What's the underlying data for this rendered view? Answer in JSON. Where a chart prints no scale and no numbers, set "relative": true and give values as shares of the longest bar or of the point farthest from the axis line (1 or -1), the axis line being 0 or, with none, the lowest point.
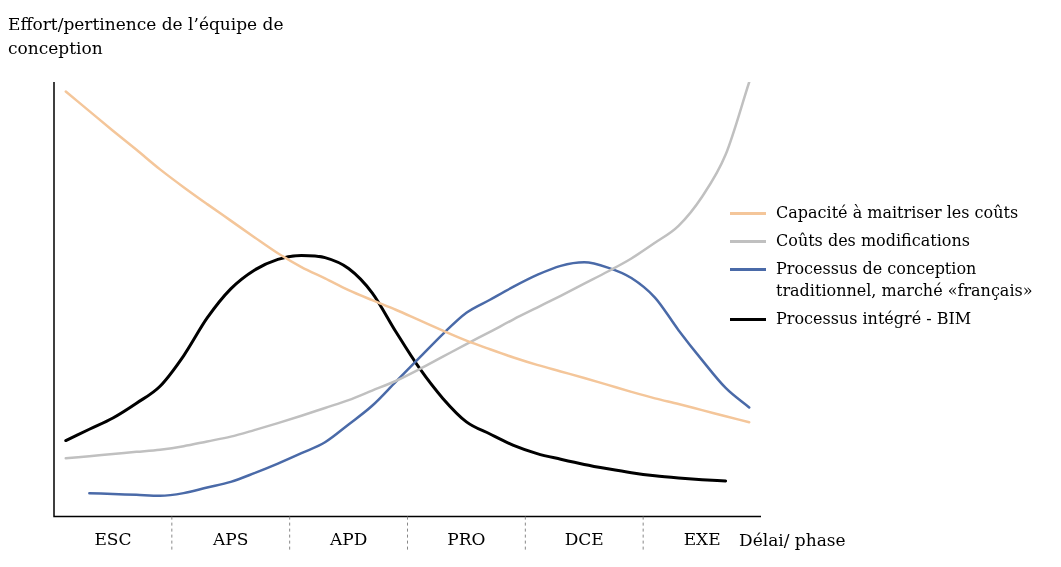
{
  "chart_data": {
    "type": "line",
    "ylabel": "Effort/pertinence de l’équipe de conception",
    "xlabel": "Délai/ phase",
    "relative": true,
    "categories": [
      null,
      null,
      "ESC",
      null,
      null,
      null,
      null,
      "APS",
      null,
      null,
      null,
      null,
      "APD",
      null,
      null,
      null,
      null,
      "PRO",
      null,
      null,
      null,
      null,
      "DCE",
      null,
      null,
      null,
      null,
      "EXE",
      null,
      null
    ],
    "grid": false,
    "legend": "right",
    "marker": "none",
    "line_style": "solid",
    "series": [
      {
        "name": "Capacité à maitriser les coûts",
        "color": "#f4c69a",
        "values": [
          0.978,
          0.933,
          0.888,
          0.844,
          0.799,
          0.758,
          0.719,
          0.681,
          0.643,
          0.606,
          0.574,
          0.548,
          0.521,
          0.498,
          0.476,
          0.452,
          0.428,
          0.405,
          0.385,
          0.366,
          0.349,
          0.334,
          0.319,
          0.303,
          0.287,
          0.272,
          0.259,
          0.245,
          0.231,
          0.217
        ]
      },
      {
        "name": "Coûts des modifications",
        "color": "#c0c0c0",
        "values": [
          0.134,
          0.139,
          0.144,
          0.149,
          0.154,
          0.162,
          0.173,
          0.184,
          0.199,
          0.215,
          0.232,
          0.25,
          0.268,
          0.29,
          0.312,
          0.339,
          0.368,
          0.397,
          0.425,
          0.454,
          0.481,
          0.508,
          0.536,
          0.564,
          0.594,
          0.63,
          0.669,
          0.736,
          0.833,
          1
        ]
      },
      {
        "name": "Processus de conception traditionnel, marché «français»",
        "color": "#4a6aa8",
        "values": [
          null,
          0.054,
          0.052,
          0.05,
          0.048,
          0.054,
          0.067,
          0.08,
          0.1,
          0.122,
          0.146,
          0.171,
          0.212,
          0.255,
          0.31,
          0.365,
          0.42,
          0.469,
          0.499,
          0.529,
          0.556,
          0.577,
          0.585,
          0.573,
          0.549,
          0.504,
          0.429,
          0.36,
          0.296,
          0.251
        ]
      },
      {
        "name": "Processus intégré - BIM",
        "color": "#000000",
        "values": [
          0.175,
          0.201,
          0.227,
          0.261,
          0.3,
          0.37,
          0.457,
          0.524,
          0.567,
          0.592,
          0.601,
          0.596,
          0.571,
          0.515,
          0.426,
          0.342,
          0.272,
          0.218,
          0.19,
          0.164,
          0.145,
          0.132,
          0.12,
          0.11,
          0.101,
          0.094,
          0.089,
          0.085,
          0.082,
          null
        ]
      }
    ]
  }
}
